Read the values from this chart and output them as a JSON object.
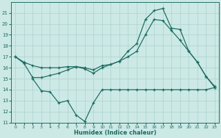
{
  "xlabel": "Humidex (Indice chaleur)",
  "xlim": [
    -0.5,
    23.5
  ],
  "ylim": [
    11,
    22
  ],
  "yticks": [
    11,
    12,
    13,
    14,
    15,
    16,
    17,
    18,
    19,
    20,
    21
  ],
  "xticks": [
    0,
    1,
    2,
    3,
    4,
    5,
    6,
    7,
    8,
    9,
    10,
    11,
    12,
    13,
    14,
    15,
    16,
    17,
    18,
    19,
    20,
    21,
    22,
    23
  ],
  "bg_color": "#cce9e6",
  "grid_color": "#b0d4d0",
  "line_color": "#1a6b60",
  "line1_x": [
    0,
    1,
    2,
    3,
    4,
    5,
    6,
    7,
    8,
    9,
    10,
    11,
    12,
    13,
    14,
    15,
    16,
    17,
    18,
    19,
    20,
    21,
    22,
    23
  ],
  "line1_y": [
    17.0,
    16.5,
    16.2,
    16.0,
    16.0,
    16.0,
    16.1,
    16.1,
    16.0,
    15.8,
    16.2,
    16.3,
    16.6,
    17.5,
    18.2,
    20.4,
    21.2,
    21.4,
    19.6,
    19.5,
    17.5,
    16.5,
    15.2,
    14.3
  ],
  "line2_x": [
    0,
    1,
    2,
    3,
    4,
    5,
    6,
    7,
    8,
    9,
    10,
    11,
    12,
    13,
    14,
    15,
    16,
    17,
    18,
    19,
    20,
    21,
    22,
    23
  ],
  "line2_y": [
    17.0,
    16.4,
    15.1,
    15.1,
    15.3,
    15.5,
    15.8,
    16.1,
    15.9,
    15.5,
    16.0,
    16.3,
    16.6,
    17.0,
    17.5,
    19.0,
    20.4,
    20.3,
    19.4,
    18.5,
    17.5,
    16.5,
    15.2,
    14.2
  ],
  "line3_x": [
    2,
    3,
    4,
    5,
    6,
    7,
    8,
    9,
    10,
    11,
    12,
    13,
    14,
    15,
    16,
    17,
    18,
    19,
    20,
    21,
    22,
    23
  ],
  "line3_y": [
    15.0,
    13.9,
    13.8,
    12.8,
    13.0,
    11.7,
    11.1,
    12.8,
    14.0,
    14.0,
    14.0,
    14.0,
    14.0,
    14.0,
    14.0,
    14.0,
    14.0,
    14.0,
    14.0,
    14.0,
    14.0,
    14.2
  ]
}
